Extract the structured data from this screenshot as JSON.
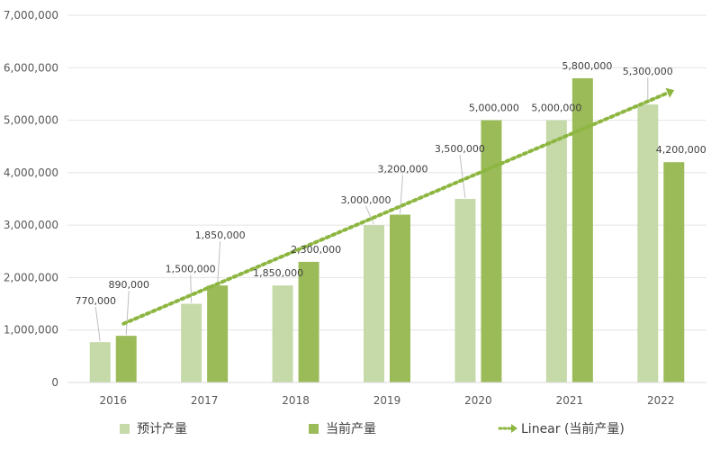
{
  "chart_data": {
    "type": "bar",
    "categories": [
      "2016",
      "2017",
      "2018",
      "2019",
      "2020",
      "2021",
      "2022"
    ],
    "series": [
      {
        "name": "预计产量",
        "values": [
          770000,
          1500000,
          1850000,
          3000000,
          3500000,
          5000000,
          5300000
        ],
        "color": "#c5d9a9"
      },
      {
        "name": "当前产量",
        "values": [
          890000,
          1850000,
          2300000,
          3200000,
          5000000,
          5800000,
          4200000
        ],
        "color": "#9bbb59"
      }
    ],
    "value_labels": [
      [
        "770,000",
        "1,500,000",
        "1,850,000",
        "3,000,000",
        "3,500,000",
        "5,000,000",
        "5,300,000"
      ],
      [
        "890,000",
        "1,850,000",
        "2,300,000",
        "3,200,000",
        "5,000,000",
        "5,800,000",
        "4,200,000"
      ]
    ],
    "trendline": {
      "name": "Linear (当前产量)",
      "series_index": 1,
      "type": "linear",
      "color": "#8db641"
    },
    "ylim": [
      0,
      7000000
    ],
    "yticks": [
      0,
      1000000,
      2000000,
      3000000,
      4000000,
      5000000,
      6000000,
      7000000
    ],
    "ytick_labels": [
      "0",
      "1,000,000",
      "2,000,000",
      "3,000,000",
      "4,000,000",
      "5,000,000",
      "6,000,000",
      "7,000,000"
    ],
    "grid": true,
    "legend_position": "bottom",
    "title": "",
    "xlabel": "",
    "ylabel": ""
  }
}
